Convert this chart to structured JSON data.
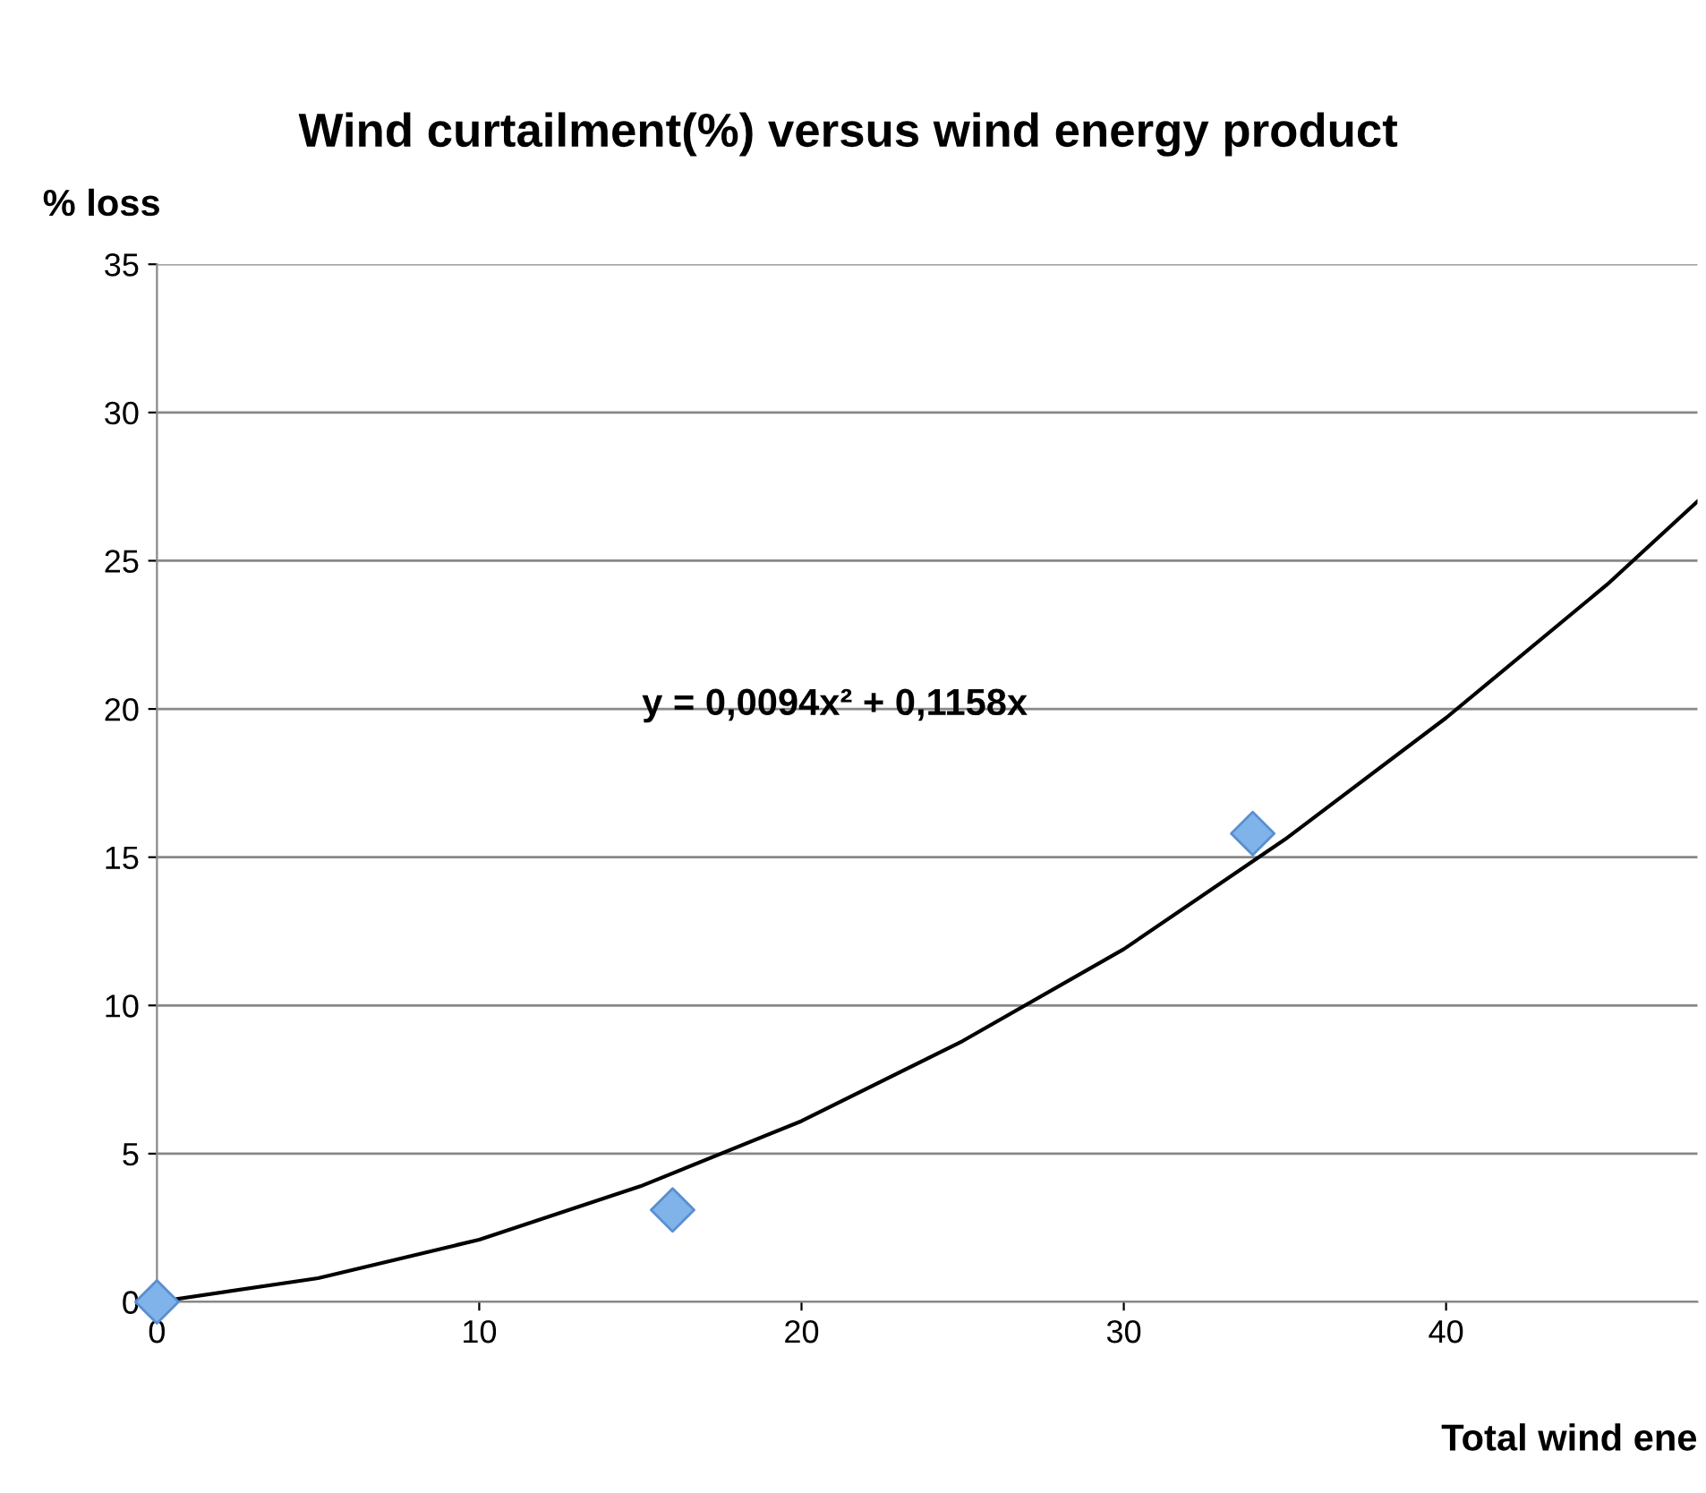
{
  "chart_data": {
    "type": "scatter",
    "title": "Wind curtailment(%) versus wind energy product",
    "xlabel": "Total wind ene",
    "ylabel": "% loss",
    "series": [
      {
        "color": "#7fb3ea",
        "x": [
          0,
          16,
          34
        ],
        "values": [
          0,
          3.1,
          15.8
        ],
        "marker": "diamond"
      },
      {
        "type": "line",
        "color": "#000000",
        "x": [
          0,
          5,
          10,
          15,
          20,
          25,
          30,
          35,
          40,
          45,
          47.8
        ],
        "values": [
          0,
          0.8,
          2.1,
          3.9,
          6.1,
          8.8,
          11.9,
          15.6,
          19.7,
          24.2,
          27.0
        ],
        "marker": "none"
      }
    ],
    "annotations": [
      "y = 0,0094x² + 0,1158x"
    ],
    "xlim": [
      0,
      47.8
    ],
    "xticks": [
      0,
      10,
      20,
      30,
      40
    ],
    "ylim": [
      0,
      35
    ],
    "yticks": [
      0,
      5,
      10,
      15,
      20,
      25,
      30,
      35
    ],
    "grid": "y"
  }
}
